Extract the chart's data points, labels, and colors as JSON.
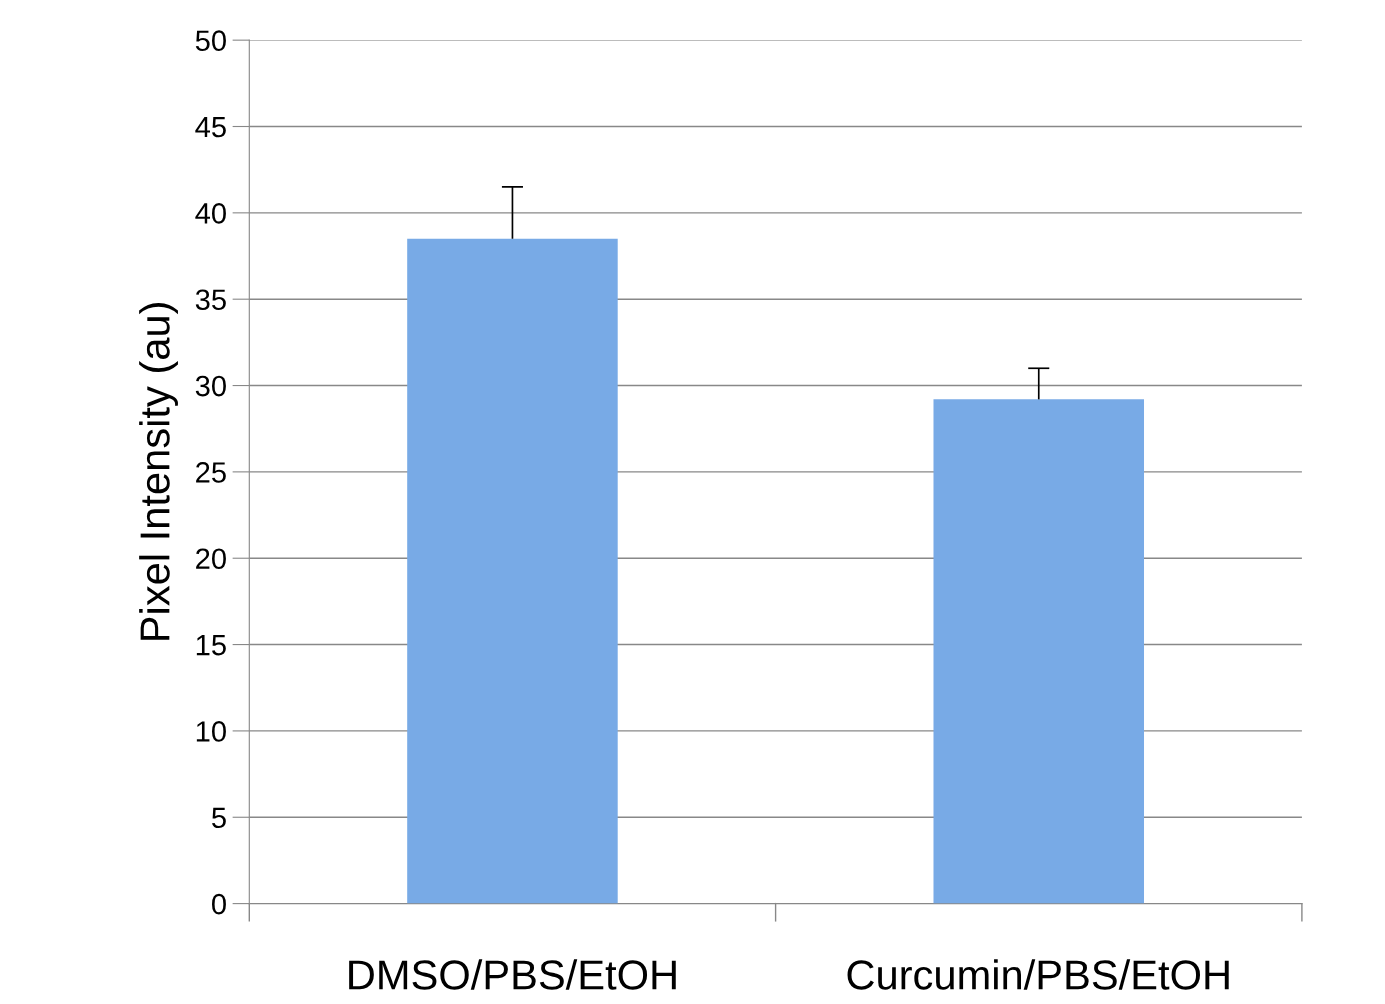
{
  "chart_data": {
    "type": "bar",
    "ylabel": "Pixel Intensity (au)",
    "categories": [
      "DMSO/PBS/EtOH",
      "Curcumin/PBS/EtOH"
    ],
    "values": [
      38.5,
      29.2
    ],
    "errors": [
      [
        38.5,
        41.5
      ],
      [
        29.2,
        31.0
      ]
    ],
    "color": "#78aae6",
    "ylim": [
      0,
      50
    ],
    "yticks": [
      0,
      5,
      10,
      15,
      20,
      25,
      30,
      35,
      40,
      45,
      50
    ],
    "grid": "y",
    "legend": false
  }
}
